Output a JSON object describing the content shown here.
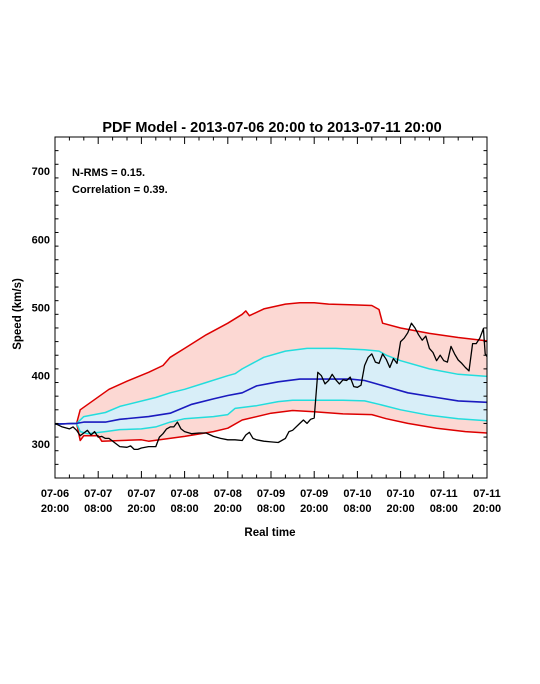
{
  "chart_data": {
    "type": "line",
    "title": "PDF Model - 2013-07-06 20:00 to 2013-07-11 20:00",
    "xlabel": "Real time",
    "ylabel": "Speed (km/s)",
    "ylim": [
      250,
      750
    ],
    "yticks": [
      300,
      400,
      500,
      600,
      700
    ],
    "xlim": [
      0,
      120
    ],
    "xticks": [
      {
        "x": 0,
        "label": [
          "07-06",
          "20:00"
        ]
      },
      {
        "x": 12,
        "label": [
          "07-07",
          "08:00"
        ]
      },
      {
        "x": 24,
        "label": [
          "07-07",
          "20:00"
        ]
      },
      {
        "x": 36,
        "label": [
          "07-08",
          "08:00"
        ]
      },
      {
        "x": 48,
        "label": [
          "07-08",
          "20:00"
        ]
      },
      {
        "x": 60,
        "label": [
          "07-09",
          "08:00"
        ]
      },
      {
        "x": 72,
        "label": [
          "07-09",
          "20:00"
        ]
      },
      {
        "x": 84,
        "label": [
          "07-10",
          "08:00"
        ]
      },
      {
        "x": 96,
        "label": [
          "07-10",
          "20:00"
        ]
      },
      {
        "x": 108,
        "label": [
          "07-11",
          "08:00"
        ]
      },
      {
        "x": 120,
        "label": [
          "07-11",
          "20:00"
        ]
      }
    ],
    "annotations": [
      "N-RMS = 0.15.",
      "Correlation = 0.39."
    ],
    "grid": false,
    "colors": {
      "outer_band_line": "#dd0000",
      "outer_band_fill": "#fcd8d3",
      "inner_band_line": "#22dddd",
      "inner_band_fill": "#d8eef8",
      "median": "#1a1abf",
      "observed": "#000000"
    },
    "series": [
      {
        "role": "outer-upper",
        "points": [
          [
            0,
            329
          ],
          [
            6,
            330
          ],
          [
            7,
            350
          ],
          [
            15,
            380
          ],
          [
            20,
            392
          ],
          [
            26,
            405
          ],
          [
            30,
            415
          ],
          [
            32,
            427
          ],
          [
            36,
            440
          ],
          [
            42,
            460
          ],
          [
            48,
            477
          ],
          [
            52,
            490
          ],
          [
            53,
            495
          ],
          [
            54,
            488
          ],
          [
            58,
            498
          ],
          [
            64,
            505
          ],
          [
            68,
            507
          ],
          [
            72,
            507
          ],
          [
            76,
            505
          ],
          [
            82,
            504
          ],
          [
            88,
            503
          ],
          [
            90,
            497
          ],
          [
            91,
            477
          ],
          [
            96,
            470
          ],
          [
            104,
            462
          ],
          [
            112,
            456
          ],
          [
            120,
            451
          ]
        ]
      },
      {
        "role": "outer-lower",
        "points": [
          [
            0,
            329
          ],
          [
            6,
            330
          ],
          [
            7,
            305
          ],
          [
            8,
            312
          ],
          [
            12,
            312
          ],
          [
            13,
            304
          ],
          [
            24,
            306
          ],
          [
            26,
            304
          ],
          [
            36,
            311
          ],
          [
            44,
            318
          ],
          [
            48,
            323
          ],
          [
            52,
            335
          ],
          [
            60,
            345
          ],
          [
            66,
            349
          ],
          [
            72,
            347
          ],
          [
            80,
            344
          ],
          [
            88,
            343
          ],
          [
            92,
            337
          ],
          [
            98,
            330
          ],
          [
            106,
            323
          ],
          [
            114,
            318
          ],
          [
            120,
            316
          ]
        ]
      },
      {
        "role": "inner-upper",
        "points": [
          [
            0,
            329
          ],
          [
            6,
            330
          ],
          [
            8,
            340
          ],
          [
            14,
            346
          ],
          [
            18,
            355
          ],
          [
            28,
            368
          ],
          [
            32,
            375
          ],
          [
            36,
            380
          ],
          [
            42,
            390
          ],
          [
            48,
            400
          ],
          [
            50,
            403
          ],
          [
            52,
            410
          ],
          [
            58,
            427
          ],
          [
            64,
            436
          ],
          [
            70,
            440
          ],
          [
            78,
            440
          ],
          [
            86,
            438
          ],
          [
            90,
            436
          ],
          [
            92,
            430
          ],
          [
            96,
            422
          ],
          [
            104,
            410
          ],
          [
            112,
            402
          ],
          [
            120,
            399
          ]
        ]
      },
      {
        "role": "inner-lower",
        "points": [
          [
            0,
            329
          ],
          [
            6,
            330
          ],
          [
            7,
            318
          ],
          [
            9,
            315
          ],
          [
            14,
            318
          ],
          [
            18,
            321
          ],
          [
            24,
            322
          ],
          [
            28,
            325
          ],
          [
            32,
            332
          ],
          [
            36,
            337
          ],
          [
            44,
            340
          ],
          [
            48,
            343
          ],
          [
            50,
            352
          ],
          [
            56,
            356
          ],
          [
            62,
            362
          ],
          [
            66,
            364
          ],
          [
            72,
            364
          ],
          [
            80,
            364
          ],
          [
            86,
            363
          ],
          [
            90,
            358
          ],
          [
            96,
            350
          ],
          [
            104,
            342
          ],
          [
            112,
            337
          ],
          [
            120,
            334
          ]
        ]
      },
      {
        "role": "median",
        "points": [
          [
            0,
            329
          ],
          [
            6,
            330
          ],
          [
            8,
            332
          ],
          [
            14,
            332
          ],
          [
            18,
            336
          ],
          [
            26,
            340
          ],
          [
            32,
            345
          ],
          [
            38,
            358
          ],
          [
            44,
            366
          ],
          [
            48,
            371
          ],
          [
            52,
            375
          ],
          [
            56,
            385
          ],
          [
            62,
            391
          ],
          [
            68,
            395
          ],
          [
            74,
            395
          ],
          [
            82,
            395
          ],
          [
            86,
            393
          ],
          [
            88,
            390
          ],
          [
            92,
            384
          ],
          [
            98,
            375
          ],
          [
            106,
            368
          ],
          [
            112,
            363
          ],
          [
            120,
            361
          ]
        ]
      },
      {
        "role": "observed",
        "points": [
          [
            0,
            330
          ],
          [
            2,
            325
          ],
          [
            4,
            322
          ],
          [
            5,
            325
          ],
          [
            6,
            320
          ],
          [
            7,
            312
          ],
          [
            8,
            316
          ],
          [
            9,
            320
          ],
          [
            10,
            313
          ],
          [
            11,
            318
          ],
          [
            12,
            310
          ],
          [
            13,
            311
          ],
          [
            14,
            308
          ],
          [
            15,
            308
          ],
          [
            17,
            300
          ],
          [
            18,
            296
          ],
          [
            20,
            295
          ],
          [
            21,
            297
          ],
          [
            22,
            292
          ],
          [
            23,
            292
          ],
          [
            24,
            294
          ],
          [
            26,
            296
          ],
          [
            28,
            296
          ],
          [
            29,
            310
          ],
          [
            30,
            315
          ],
          [
            31,
            322
          ],
          [
            32,
            325
          ],
          [
            33,
            325
          ],
          [
            34,
            332
          ],
          [
            35,
            322
          ],
          [
            36,
            318
          ],
          [
            38,
            315
          ],
          [
            40,
            316
          ],
          [
            42,
            316
          ],
          [
            44,
            311
          ],
          [
            46,
            308
          ],
          [
            48,
            306
          ],
          [
            50,
            306
          ],
          [
            52,
            305
          ],
          [
            53,
            313
          ],
          [
            54,
            317
          ],
          [
            55,
            308
          ],
          [
            56,
            306
          ],
          [
            58,
            304
          ],
          [
            60,
            303
          ],
          [
            62,
            302
          ],
          [
            64,
            308
          ],
          [
            65,
            318
          ],
          [
            66,
            320
          ],
          [
            68,
            330
          ],
          [
            69,
            335
          ],
          [
            70,
            330
          ],
          [
            71,
            336
          ],
          [
            72,
            338
          ],
          [
            73,
            405
          ],
          [
            74,
            400
          ],
          [
            75,
            388
          ],
          [
            76,
            393
          ],
          [
            77,
            402
          ],
          [
            78,
            394
          ],
          [
            79,
            388
          ],
          [
            80,
            394
          ],
          [
            81,
            393
          ],
          [
            82,
            398
          ],
          [
            83,
            384
          ],
          [
            84,
            383
          ],
          [
            85,
            386
          ],
          [
            86,
            415
          ],
          [
            87,
            427
          ],
          [
            88,
            432
          ],
          [
            89,
            420
          ],
          [
            90,
            418
          ],
          [
            91,
            432
          ],
          [
            92,
            424
          ],
          [
            93,
            412
          ],
          [
            94,
            425
          ],
          [
            95,
            418
          ],
          [
            96,
            450
          ],
          [
            97,
            455
          ],
          [
            98,
            463
          ],
          [
            99,
            477
          ],
          [
            100,
            470
          ],
          [
            101,
            460
          ],
          [
            102,
            452
          ],
          [
            103,
            458
          ],
          [
            104,
            440
          ],
          [
            105,
            434
          ],
          [
            106,
            422
          ],
          [
            107,
            430
          ],
          [
            108,
            422
          ],
          [
            109,
            420
          ],
          [
            110,
            443
          ],
          [
            111,
            432
          ],
          [
            112,
            423
          ],
          [
            113,
            418
          ],
          [
            114,
            412
          ],
          [
            115,
            407
          ],
          [
            116,
            447
          ],
          [
            117,
            447
          ],
          [
            118,
            455
          ],
          [
            119,
            469
          ],
          [
            119.5,
            432
          ],
          [
            120,
            428
          ]
        ]
      }
    ]
  }
}
